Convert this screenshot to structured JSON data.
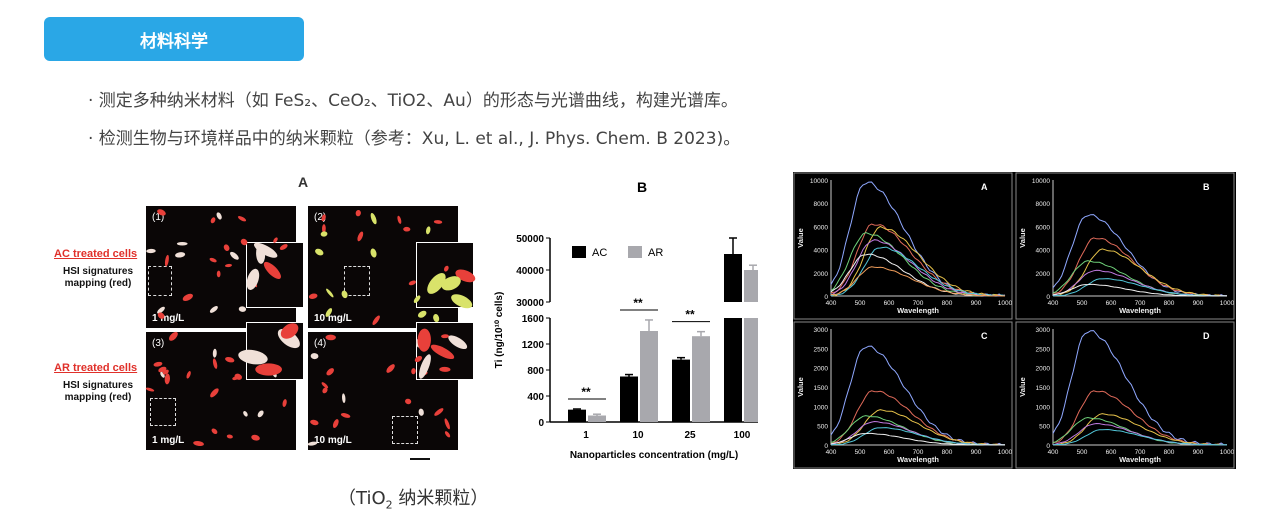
{
  "header": {
    "category_tag": "材料科学"
  },
  "bullets": [
    "· 测定多种纳米材料（如 FeS₂、CeO₂、TiO2、Au）的形态与光谱曲线，构建光谱库。",
    "· 检测生物与环境样品中的纳米颗粒（参考：Xu, L. et al., J. Phys. Chem. B 2023)。"
  ],
  "panel_a": {
    "title": "A",
    "ac_label": "AC treated cells",
    "ar_label": "AR treated cells",
    "hsi_label_1": "HSI signatures",
    "hsi_label_2": "mapping (red)",
    "cells": [
      {
        "num": "(1)",
        "conc": "1 mg/L"
      },
      {
        "num": "(2)",
        "conc": "10 mg/L"
      },
      {
        "num": "(3)",
        "conc": "1 mg/L"
      },
      {
        "num": "(4)",
        "conc": "10 mg/L"
      }
    ]
  },
  "caption": {
    "main": "（TiO",
    "sub": "2",
    "tail": " 纳米颗粒）"
  },
  "chart_data": [
    {
      "type": "bar",
      "title": "B",
      "xlabel": "Nanoparticles concentration (mg/L)",
      "ylabel": "Ti (ng/10¹⁰ cells)",
      "categories": [
        "1",
        "10",
        "25",
        "100"
      ],
      "series": [
        {
          "name": "AC",
          "values": [
            190,
            700,
            960,
            45000
          ],
          "errors": [
            10,
            30,
            30,
            5000
          ],
          "color": "#000000"
        },
        {
          "name": "AR",
          "values": [
            100,
            1400,
            1320,
            40000
          ],
          "errors": [
            20,
            170,
            70,
            1500
          ],
          "color": "#a8a8ad"
        }
      ],
      "lower_axis": {
        "ticks": [
          "0",
          "400",
          "800",
          "1200",
          "1600"
        ],
        "ylim": [
          0,
          1600
        ]
      },
      "upper_axis": {
        "ticks": [
          "30000",
          "40000",
          "50000"
        ],
        "ylim": [
          30000,
          50000
        ]
      },
      "significance": [
        "**",
        "**",
        "**"
      ],
      "legend": "top-left"
    },
    {
      "type": "line",
      "panels": [
        {
          "label": "A",
          "ylim": [
            0,
            10000
          ],
          "yticks": [
            "0",
            "2000",
            "4000",
            "6000",
            "8000",
            "10000"
          ],
          "peaks": [
            9800,
            6200,
            5900,
            5400,
            4800,
            4200,
            3600,
            2500
          ]
        },
        {
          "label": "B",
          "ylim": [
            0,
            10000
          ],
          "yticks": [
            "0",
            "2000",
            "4000",
            "6000",
            "8000",
            "10000"
          ],
          "peaks": [
            7000,
            5000,
            4000,
            3000,
            2200,
            1500,
            1000
          ]
        },
        {
          "label": "C",
          "ylim": [
            0,
            3000
          ],
          "yticks": [
            "0",
            "500",
            "1000",
            "1500",
            "2000",
            "2500",
            "3000"
          ],
          "peaks": [
            2550,
            1400,
            900,
            750,
            600,
            450,
            300
          ]
        },
        {
          "label": "D",
          "ylim": [
            0,
            3000
          ],
          "yticks": [
            "0",
            "500",
            "1000",
            "1500",
            "2000",
            "2500",
            "3000"
          ],
          "peaks": [
            2950,
            1400,
            800,
            700,
            550,
            400
          ]
        }
      ],
      "xlabel": "Wavelength",
      "ylabel": "Value",
      "xticks": [
        "400",
        "500",
        "600",
        "700",
        "800",
        "900",
        "1000"
      ],
      "line_colors": [
        "#8fa8ff",
        "#e06a5a",
        "#e6c24a",
        "#6fd17a",
        "#c07be0",
        "#52c7d9",
        "#f0f0f0",
        "#f09d5a"
      ]
    }
  ]
}
